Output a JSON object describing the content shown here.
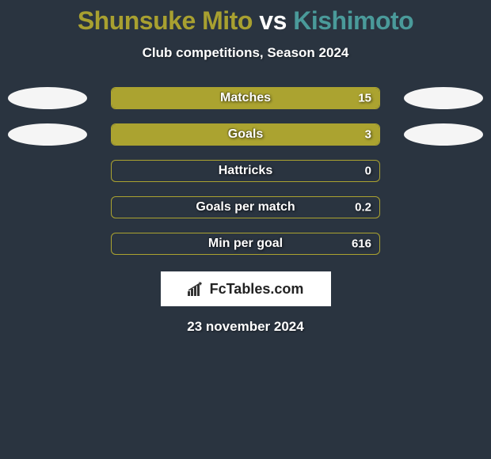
{
  "title": {
    "player1": "Shunsuke Mito",
    "player1_color": "#a8a030",
    "separator": " vs ",
    "separator_color": "#ffffff",
    "player2": "Kishimoto",
    "player2_color": "#4a9a9a"
  },
  "subtitle": "Club competitions, Season 2024",
  "background_color": "#2a3440",
  "bars": [
    {
      "label": "Matches",
      "value": "15",
      "fill_pct": 100,
      "fill_color": "#aba330",
      "border_color": "#aba330",
      "show_left_ellipse": true,
      "show_right_ellipse": true,
      "left_ellipse_fill": "#f5f5f5",
      "right_ellipse_fill": "#f5f5f5"
    },
    {
      "label": "Goals",
      "value": "3",
      "fill_pct": 100,
      "fill_color": "#aba330",
      "border_color": "#aba330",
      "show_left_ellipse": true,
      "show_right_ellipse": true,
      "left_ellipse_fill": "#f5f5f5",
      "right_ellipse_fill": "#f5f5f5"
    },
    {
      "label": "Hattricks",
      "value": "0",
      "fill_pct": 0,
      "fill_color": "#aba330",
      "border_color": "#aba330",
      "show_left_ellipse": false,
      "show_right_ellipse": false
    },
    {
      "label": "Goals per match",
      "value": "0.2",
      "fill_pct": 0,
      "fill_color": "#aba330",
      "border_color": "#aba330",
      "show_left_ellipse": false,
      "show_right_ellipse": false
    },
    {
      "label": "Min per goal",
      "value": "616",
      "fill_pct": 0,
      "fill_color": "#aba330",
      "border_color": "#aba330",
      "show_left_ellipse": false,
      "show_right_ellipse": false
    }
  ],
  "logo": {
    "text": "FcTables.com",
    "background": "#ffffff"
  },
  "date": "23 november 2024"
}
